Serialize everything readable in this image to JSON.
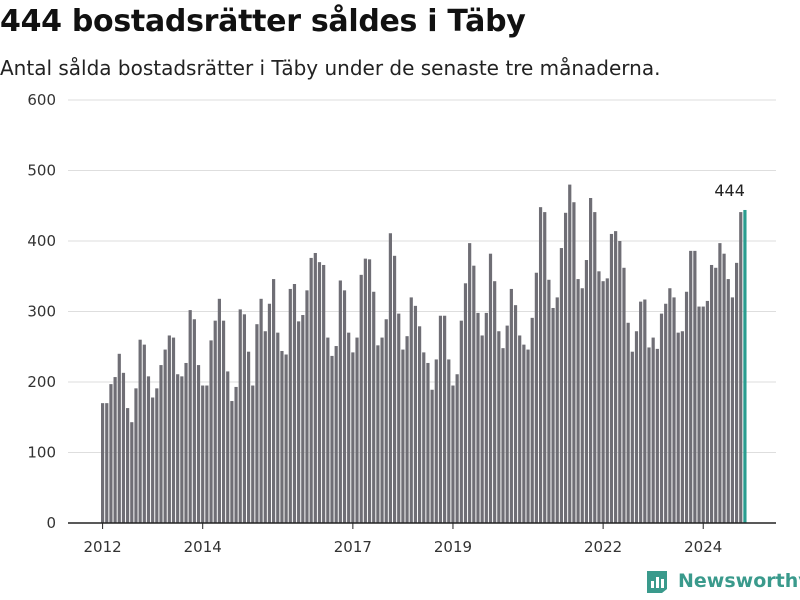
{
  "header": {
    "title": "444 bostadsrätter såldes i Täby",
    "subtitle": "Antal sålda bostadsrätter i Täby under de senaste tre månaderna."
  },
  "brand": {
    "name": "Newsworthy",
    "icon": "newsworthy-logo-icon",
    "color": "#3a9a8c"
  },
  "chart_data": {
    "type": "bar",
    "ylim": [
      0,
      600
    ],
    "yticks": [
      "0",
      "100",
      "200",
      "300",
      "400",
      "500",
      "600"
    ],
    "xticks": [
      "2012",
      "2014",
      "2017",
      "2019",
      "2022",
      "2024"
    ],
    "grid": true,
    "colors": {
      "bar": "#6f6e75",
      "highlight": "#2a9d8f"
    },
    "highlight_label": "444",
    "values": [
      170,
      170,
      197,
      207,
      240,
      213,
      163,
      143,
      191,
      260,
      253,
      208,
      178,
      191,
      224,
      246,
      266,
      263,
      211,
      208,
      227,
      302,
      289,
      224,
      195,
      195,
      259,
      287,
      318,
      287,
      215,
      173,
      193,
      303,
      296,
      243,
      195,
      282,
      318,
      272,
      311,
      346,
      270,
      244,
      239,
      332,
      339,
      286,
      295,
      330,
      376,
      383,
      370,
      366,
      263,
      237,
      251,
      344,
      330,
      270,
      242,
      263,
      352,
      375,
      374,
      328,
      252,
      263,
      289,
      411,
      379,
      297,
      246,
      265,
      320,
      308,
      279,
      242,
      227,
      189,
      232,
      294,
      294,
      232,
      195,
      211,
      287,
      340,
      397,
      365,
      298,
      266,
      298,
      382,
      343,
      272,
      248,
      280,
      332,
      309,
      266,
      253,
      246,
      291,
      355,
      448,
      441,
      345,
      305,
      320,
      390,
      440,
      480,
      455,
      346,
      333,
      373,
      461,
      441,
      357,
      343,
      347,
      410,
      414,
      400,
      362,
      284,
      243,
      272,
      314,
      317,
      249,
      263,
      247,
      297,
      311,
      333,
      320,
      270,
      272,
      328,
      386,
      386,
      307,
      307,
      315,
      366,
      362,
      397,
      382,
      346,
      320,
      369,
      441,
      444
    ]
  }
}
